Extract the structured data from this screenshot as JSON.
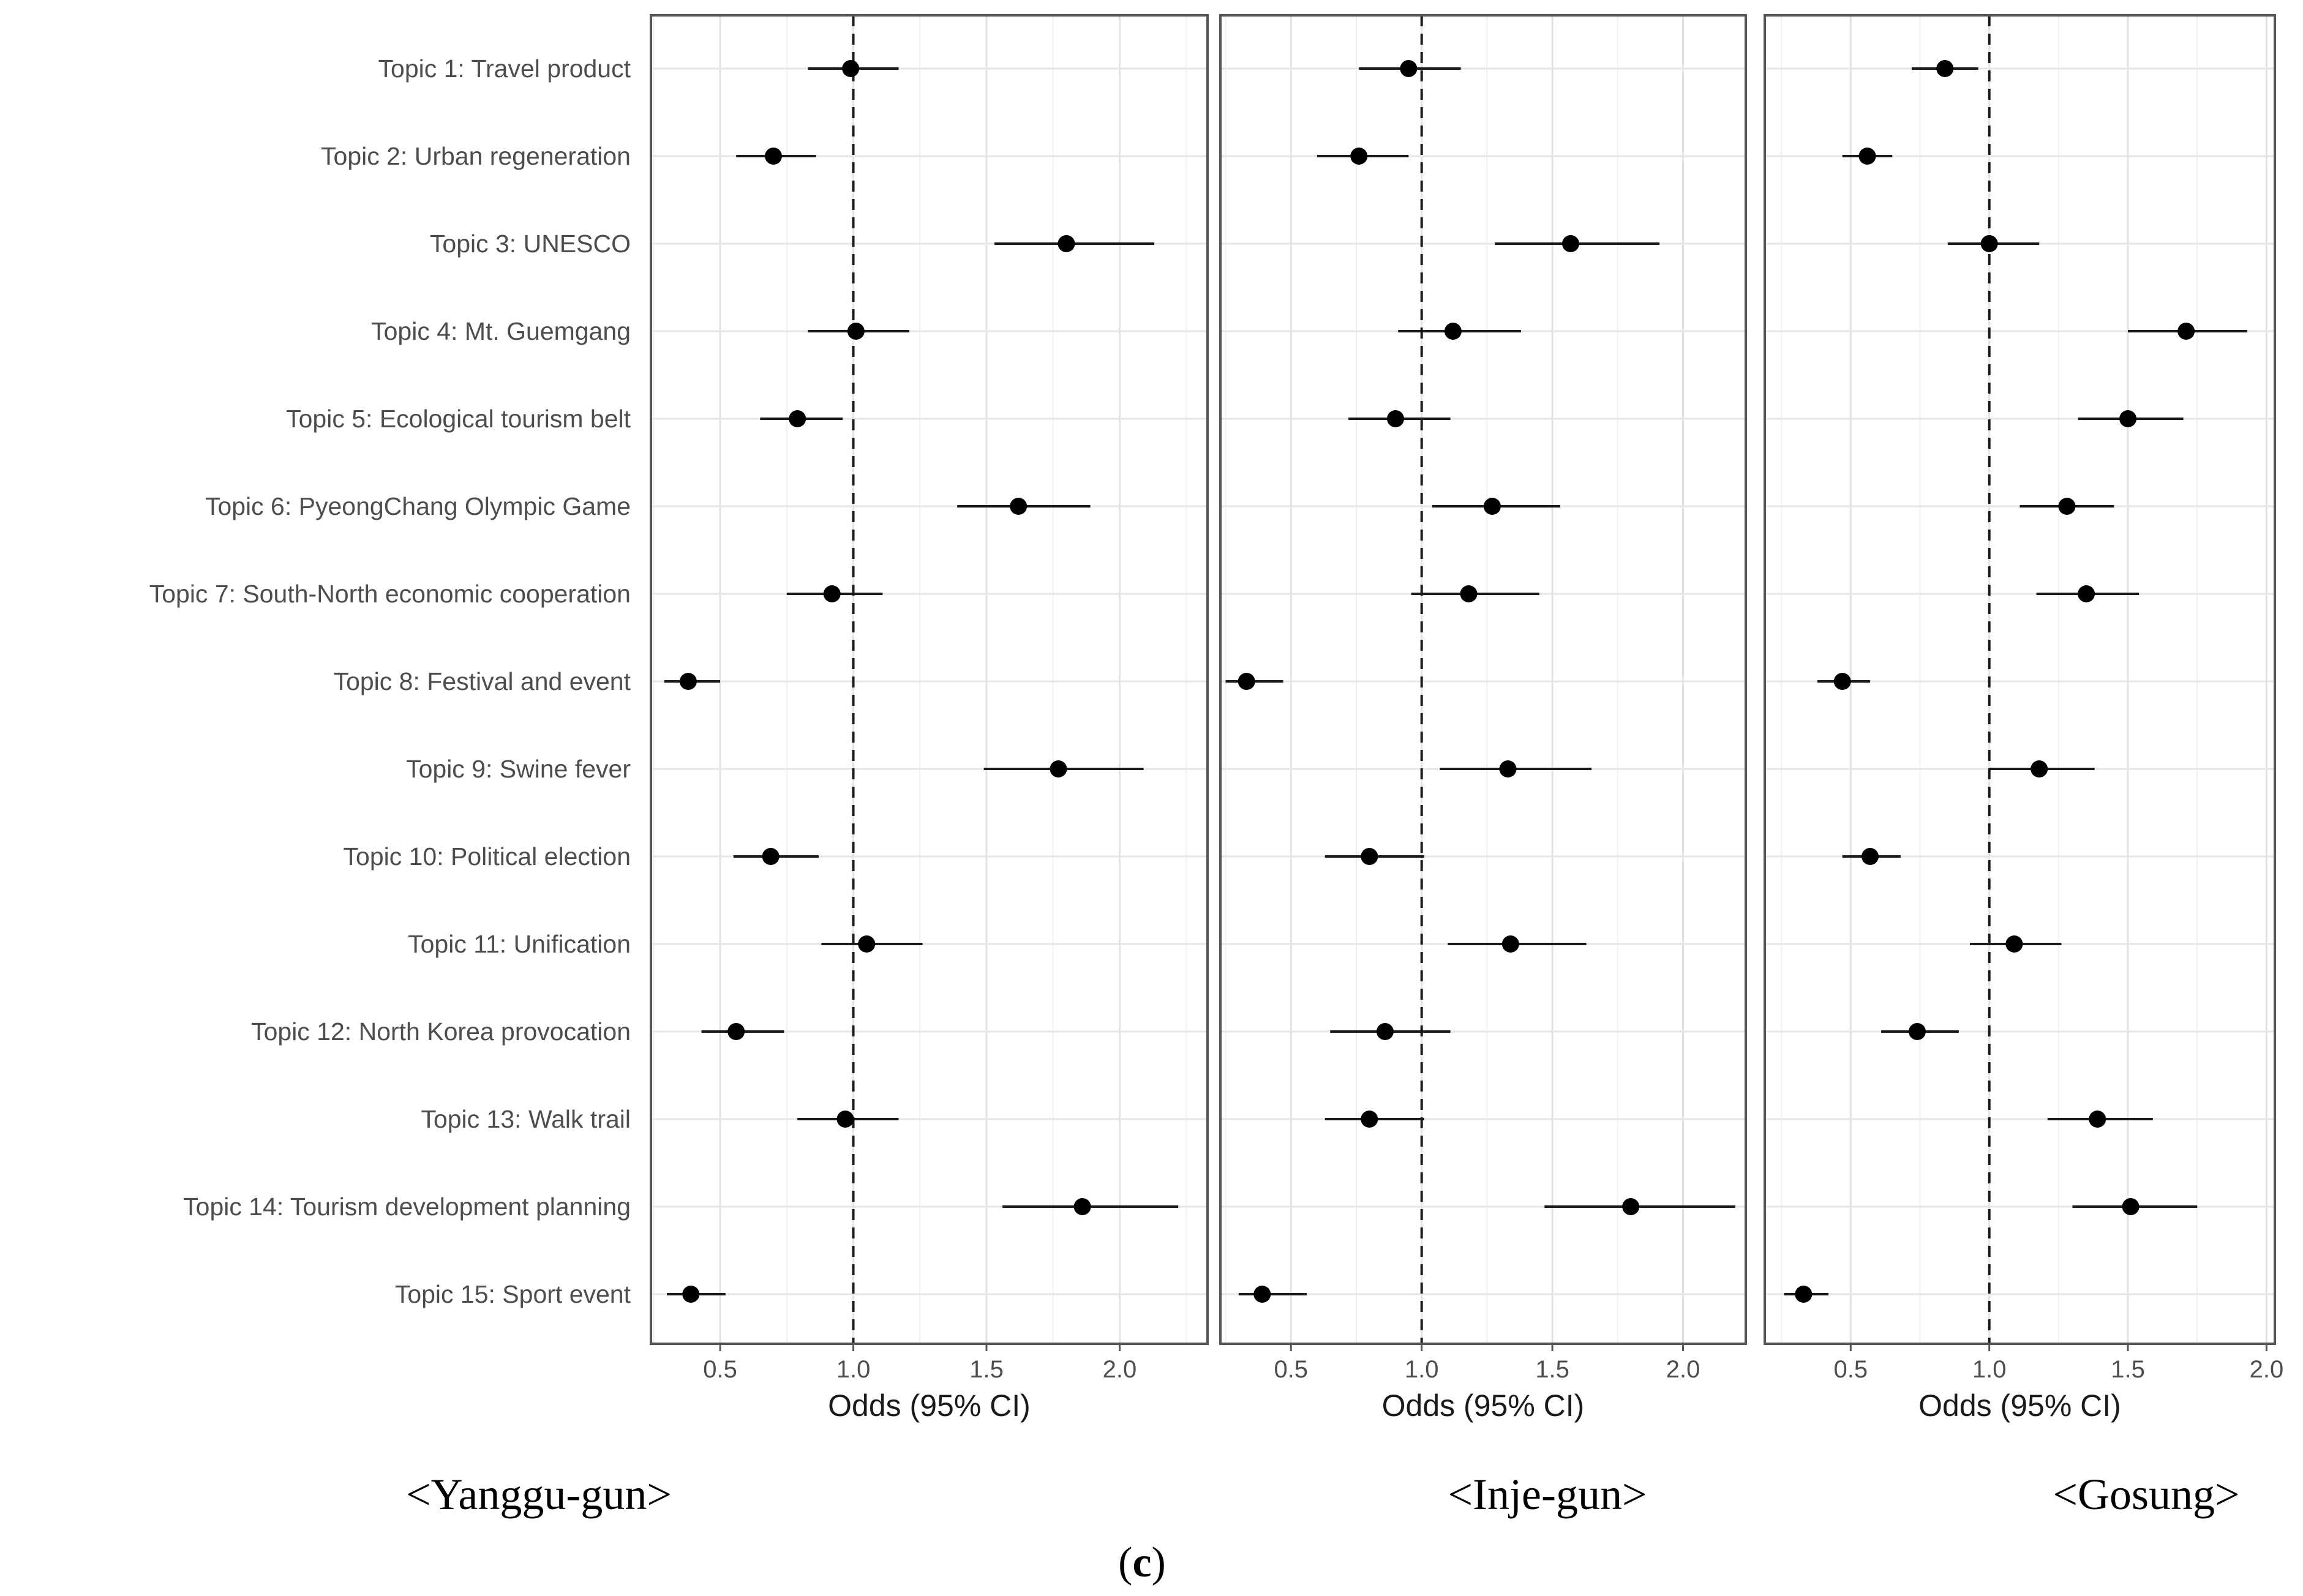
{
  "figure": {
    "label_open": "(",
    "label_letter": "c",
    "label_close": ")"
  },
  "chart_data": {
    "type": "forest",
    "shared_y_labels": [
      "Topic 1: Travel product",
      "Topic 2: Urban regeneration",
      "Topic 3: UNESCO",
      "Topic 4: Mt. Guemgang",
      "Topic 5: Ecological tourism belt",
      "Topic 6: PyeongChang Olympic Game",
      "Topic 7: South-North economic cooperation",
      "Topic 8: Festival and event",
      "Topic 9: Swine fever",
      "Topic 10: Political election",
      "Topic 11: Unification",
      "Topic 12: North Korea provocation",
      "Topic 13: Walk trail",
      "Topic 14: Tourism development planning",
      "Topic 15: Sport event"
    ],
    "reference_line": 1.0,
    "panels": [
      {
        "name": "Yanggu-gun",
        "caption": "<Yanggu-gun>",
        "xlabel": "Odds (95% CI)",
        "xlim": [
          0.24,
          2.33
        ],
        "xticks": [
          0.5,
          1.0,
          1.5,
          2.0
        ],
        "xtick_labels": [
          "0.5",
          "1.0",
          "1.5",
          "2.0"
        ],
        "estimates": [
          0.99,
          0.7,
          1.8,
          1.01,
          0.79,
          1.62,
          0.92,
          0.38,
          1.77,
          0.69,
          1.05,
          0.56,
          0.97,
          1.86,
          0.39
        ],
        "lower": [
          0.83,
          0.56,
          1.53,
          0.83,
          0.65,
          1.39,
          0.75,
          0.29,
          1.49,
          0.55,
          0.88,
          0.43,
          0.79,
          1.56,
          0.3
        ],
        "upper": [
          1.17,
          0.86,
          2.13,
          1.21,
          0.96,
          1.89,
          1.11,
          0.5,
          2.09,
          0.87,
          1.26,
          0.74,
          1.17,
          2.22,
          0.52
        ]
      },
      {
        "name": "Inje-gun",
        "caption": "<Inje-gun>",
        "xlabel": "Odds (95% CI)",
        "xlim": [
          0.23,
          2.24
        ],
        "xticks": [
          0.5,
          1.0,
          1.5,
          2.0
        ],
        "xtick_labels": [
          "0.5",
          "1.0",
          "1.5",
          "2.0"
        ],
        "estimates": [
          0.95,
          0.76,
          1.57,
          1.12,
          0.9,
          1.27,
          1.18,
          0.33,
          1.33,
          0.8,
          1.34,
          0.86,
          0.8,
          1.8,
          0.39
        ],
        "lower": [
          0.76,
          0.6,
          1.28,
          0.91,
          0.72,
          1.04,
          0.96,
          0.25,
          1.07,
          0.63,
          1.1,
          0.65,
          0.63,
          1.47,
          0.3
        ],
        "upper": [
          1.15,
          0.95,
          1.91,
          1.38,
          1.11,
          1.53,
          1.45,
          0.47,
          1.65,
          1.01,
          1.63,
          1.11,
          1.01,
          2.2,
          0.56
        ]
      },
      {
        "name": "Gosung",
        "caption": "<Gosung>",
        "xlabel": "Odds (95% CI)",
        "xlim": [
          0.19,
          2.03
        ],
        "xticks": [
          0.5,
          1.0,
          1.5,
          2.0
        ],
        "xtick_labels": [
          "0.5",
          "1.0",
          "1.5",
          "2.0"
        ],
        "estimates": [
          0.84,
          0.56,
          1.0,
          1.71,
          1.5,
          1.28,
          1.35,
          0.47,
          1.18,
          0.57,
          1.09,
          0.74,
          1.39,
          1.51,
          0.33
        ],
        "lower": [
          0.72,
          0.47,
          0.85,
          1.5,
          1.32,
          1.11,
          1.17,
          0.38,
          1.0,
          0.47,
          0.93,
          0.61,
          1.21,
          1.3,
          0.26
        ],
        "upper": [
          0.96,
          0.65,
          1.18,
          1.93,
          1.7,
          1.45,
          1.54,
          0.57,
          1.38,
          0.68,
          1.26,
          0.89,
          1.59,
          1.75,
          0.42
        ]
      }
    ]
  }
}
